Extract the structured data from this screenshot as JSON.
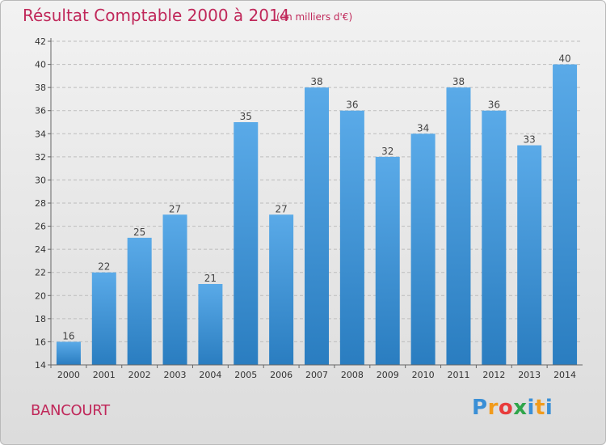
{
  "header": {
    "title": "Résultat Comptable 2000 à 2014",
    "unit": "(en milliers d'€)"
  },
  "footer": {
    "commune": "BANCOURT",
    "logo": {
      "letters": [
        "P",
        "r",
        "o",
        "x",
        "i",
        "t",
        "i"
      ],
      "colors": [
        "#3a8fd6",
        "#f19b1c",
        "#e83c3c",
        "#2fa54a",
        "#3a8fd6",
        "#f19b1c",
        "#3a8fd6"
      ]
    }
  },
  "chart_data": {
    "type": "bar",
    "title": "Résultat Comptable 2000 à 2014",
    "categories": [
      "2000",
      "2001",
      "2002",
      "2003",
      "2004",
      "2005",
      "2006",
      "2007",
      "2008",
      "2009",
      "2010",
      "2011",
      "2012",
      "2013",
      "2014"
    ],
    "values": [
      16,
      22,
      25,
      27,
      21,
      35,
      27,
      38,
      36,
      32,
      34,
      38,
      36,
      33,
      40
    ],
    "value_labels": [
      "16",
      "22",
      "25",
      "27",
      "21",
      "35",
      "27",
      "38",
      "36",
      "32",
      "34",
      "38",
      "36",
      "33",
      "40"
    ],
    "y_ticks": [
      "14",
      "16",
      "18",
      "20",
      "22",
      "24",
      "26",
      "28",
      "30",
      "32",
      "34",
      "36",
      "38",
      "40",
      "42"
    ],
    "ylim": [
      14,
      42
    ],
    "grid": true,
    "colors": {
      "bar_top": "#5aaae8",
      "bar_bottom": "#2a7dc0",
      "grid": "#bdbdbd"
    }
  }
}
